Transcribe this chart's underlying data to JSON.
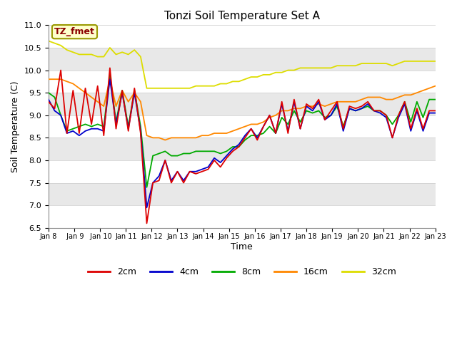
{
  "title": "Tonzi Soil Temperature Set A",
  "xlabel": "Time",
  "ylabel": "Soil Temperature (C)",
  "ylim": [
    6.5,
    11.0
  ],
  "annotation_text": "TZ_fmet",
  "annotation_color": "#8B0000",
  "annotation_bg": "#FFFFCC",
  "annotation_border": "#999900",
  "figure_bg": "#FFFFFF",
  "plot_bg": "#FFFFFF",
  "band_colors": [
    "#FFFFFF",
    "#E8E8E8"
  ],
  "colors": {
    "2cm": "#DD0000",
    "4cm": "#0000CC",
    "8cm": "#00AA00",
    "16cm": "#FF8800",
    "32cm": "#DDDD00"
  },
  "xtick_labels": [
    "Jan 8",
    " Jan 9",
    " Jan 10",
    "Jan 11",
    "Jan 12",
    "Jan 13",
    "Jan 14",
    "Jan 15",
    "Jan 16",
    "Jan 17",
    "Jan 18",
    "Jan 19",
    "Jan 20",
    "Jan 21",
    "Jan 22",
    "Jan 23"
  ],
  "ytick_values": [
    6.5,
    7.0,
    7.5,
    8.0,
    8.5,
    9.0,
    9.5,
    10.0,
    10.5,
    11.0
  ],
  "series_2cm": [
    9.3,
    9.15,
    10.0,
    8.6,
    9.55,
    8.6,
    9.6,
    8.8,
    9.65,
    8.55,
    10.05,
    8.7,
    9.55,
    8.65,
    9.6,
    8.6,
    6.6,
    7.5,
    7.55,
    8.0,
    7.5,
    7.75,
    7.5,
    7.75,
    7.7,
    7.75,
    7.8,
    8.0,
    7.85,
    8.05,
    8.2,
    8.3,
    8.5,
    8.7,
    8.45,
    8.75,
    9.0,
    8.6,
    9.3,
    8.6,
    9.35,
    8.7,
    9.25,
    9.15,
    9.35,
    8.9,
    9.1,
    9.3,
    8.7,
    9.2,
    9.15,
    9.2,
    9.3,
    9.1,
    9.1,
    9.0,
    8.5,
    9.0,
    9.3,
    8.7,
    9.15,
    8.7,
    9.1,
    9.1
  ],
  "series_4cm": [
    9.35,
    9.1,
    9.0,
    8.6,
    8.65,
    8.55,
    8.65,
    8.7,
    8.7,
    8.65,
    9.8,
    8.8,
    9.5,
    8.7,
    9.5,
    8.65,
    6.95,
    7.5,
    7.65,
    8.0,
    7.55,
    7.75,
    7.55,
    7.75,
    7.75,
    7.8,
    7.85,
    8.05,
    7.95,
    8.1,
    8.25,
    8.35,
    8.55,
    8.7,
    8.5,
    8.75,
    9.0,
    8.6,
    9.25,
    8.65,
    9.3,
    8.7,
    9.2,
    9.1,
    9.3,
    8.9,
    9.0,
    9.25,
    8.65,
    9.15,
    9.1,
    9.15,
    9.25,
    9.1,
    9.05,
    8.95,
    8.5,
    8.95,
    9.25,
    8.65,
    9.1,
    8.65,
    9.05,
    9.05
  ],
  "series_8cm": [
    9.5,
    9.4,
    9.0,
    8.65,
    8.7,
    8.75,
    8.8,
    8.75,
    8.8,
    8.75,
    9.9,
    8.85,
    9.55,
    8.75,
    9.55,
    8.75,
    7.4,
    8.1,
    8.15,
    8.2,
    8.1,
    8.1,
    8.15,
    8.15,
    8.2,
    8.2,
    8.2,
    8.2,
    8.15,
    8.2,
    8.3,
    8.3,
    8.45,
    8.55,
    8.55,
    8.6,
    8.75,
    8.6,
    8.95,
    8.8,
    9.1,
    8.85,
    9.1,
    9.05,
    9.1,
    8.95,
    9.0,
    9.2,
    8.75,
    9.15,
    9.1,
    9.15,
    9.2,
    9.1,
    9.1,
    9.0,
    8.8,
    9.0,
    9.3,
    8.85,
    9.3,
    8.95,
    9.35,
    9.35
  ],
  "series_16cm": [
    9.8,
    9.8,
    9.8,
    9.75,
    9.7,
    9.6,
    9.5,
    9.4,
    9.3,
    9.2,
    9.8,
    9.2,
    9.55,
    9.3,
    9.5,
    9.3,
    8.55,
    8.5,
    8.5,
    8.45,
    8.5,
    8.5,
    8.5,
    8.5,
    8.5,
    8.55,
    8.55,
    8.6,
    8.6,
    8.6,
    8.65,
    8.7,
    8.75,
    8.8,
    8.8,
    8.85,
    8.95,
    9.0,
    9.1,
    9.1,
    9.15,
    9.15,
    9.2,
    9.2,
    9.25,
    9.2,
    9.25,
    9.3,
    9.3,
    9.3,
    9.3,
    9.35,
    9.4,
    9.4,
    9.4,
    9.35,
    9.35,
    9.4,
    9.45,
    9.45,
    9.5,
    9.55,
    9.6,
    9.65
  ],
  "series_32cm": [
    10.65,
    10.6,
    10.55,
    10.45,
    10.4,
    10.35,
    10.35,
    10.35,
    10.3,
    10.3,
    10.5,
    10.35,
    10.4,
    10.35,
    10.45,
    10.3,
    9.6,
    9.6,
    9.6,
    9.6,
    9.6,
    9.6,
    9.6,
    9.6,
    9.65,
    9.65,
    9.65,
    9.65,
    9.7,
    9.7,
    9.75,
    9.75,
    9.8,
    9.85,
    9.85,
    9.9,
    9.9,
    9.95,
    9.95,
    10.0,
    10.0,
    10.05,
    10.05,
    10.05,
    10.05,
    10.05,
    10.05,
    10.1,
    10.1,
    10.1,
    10.1,
    10.15,
    10.15,
    10.15,
    10.15,
    10.15,
    10.1,
    10.15,
    10.2,
    10.2,
    10.2,
    10.2,
    10.2,
    10.2
  ]
}
